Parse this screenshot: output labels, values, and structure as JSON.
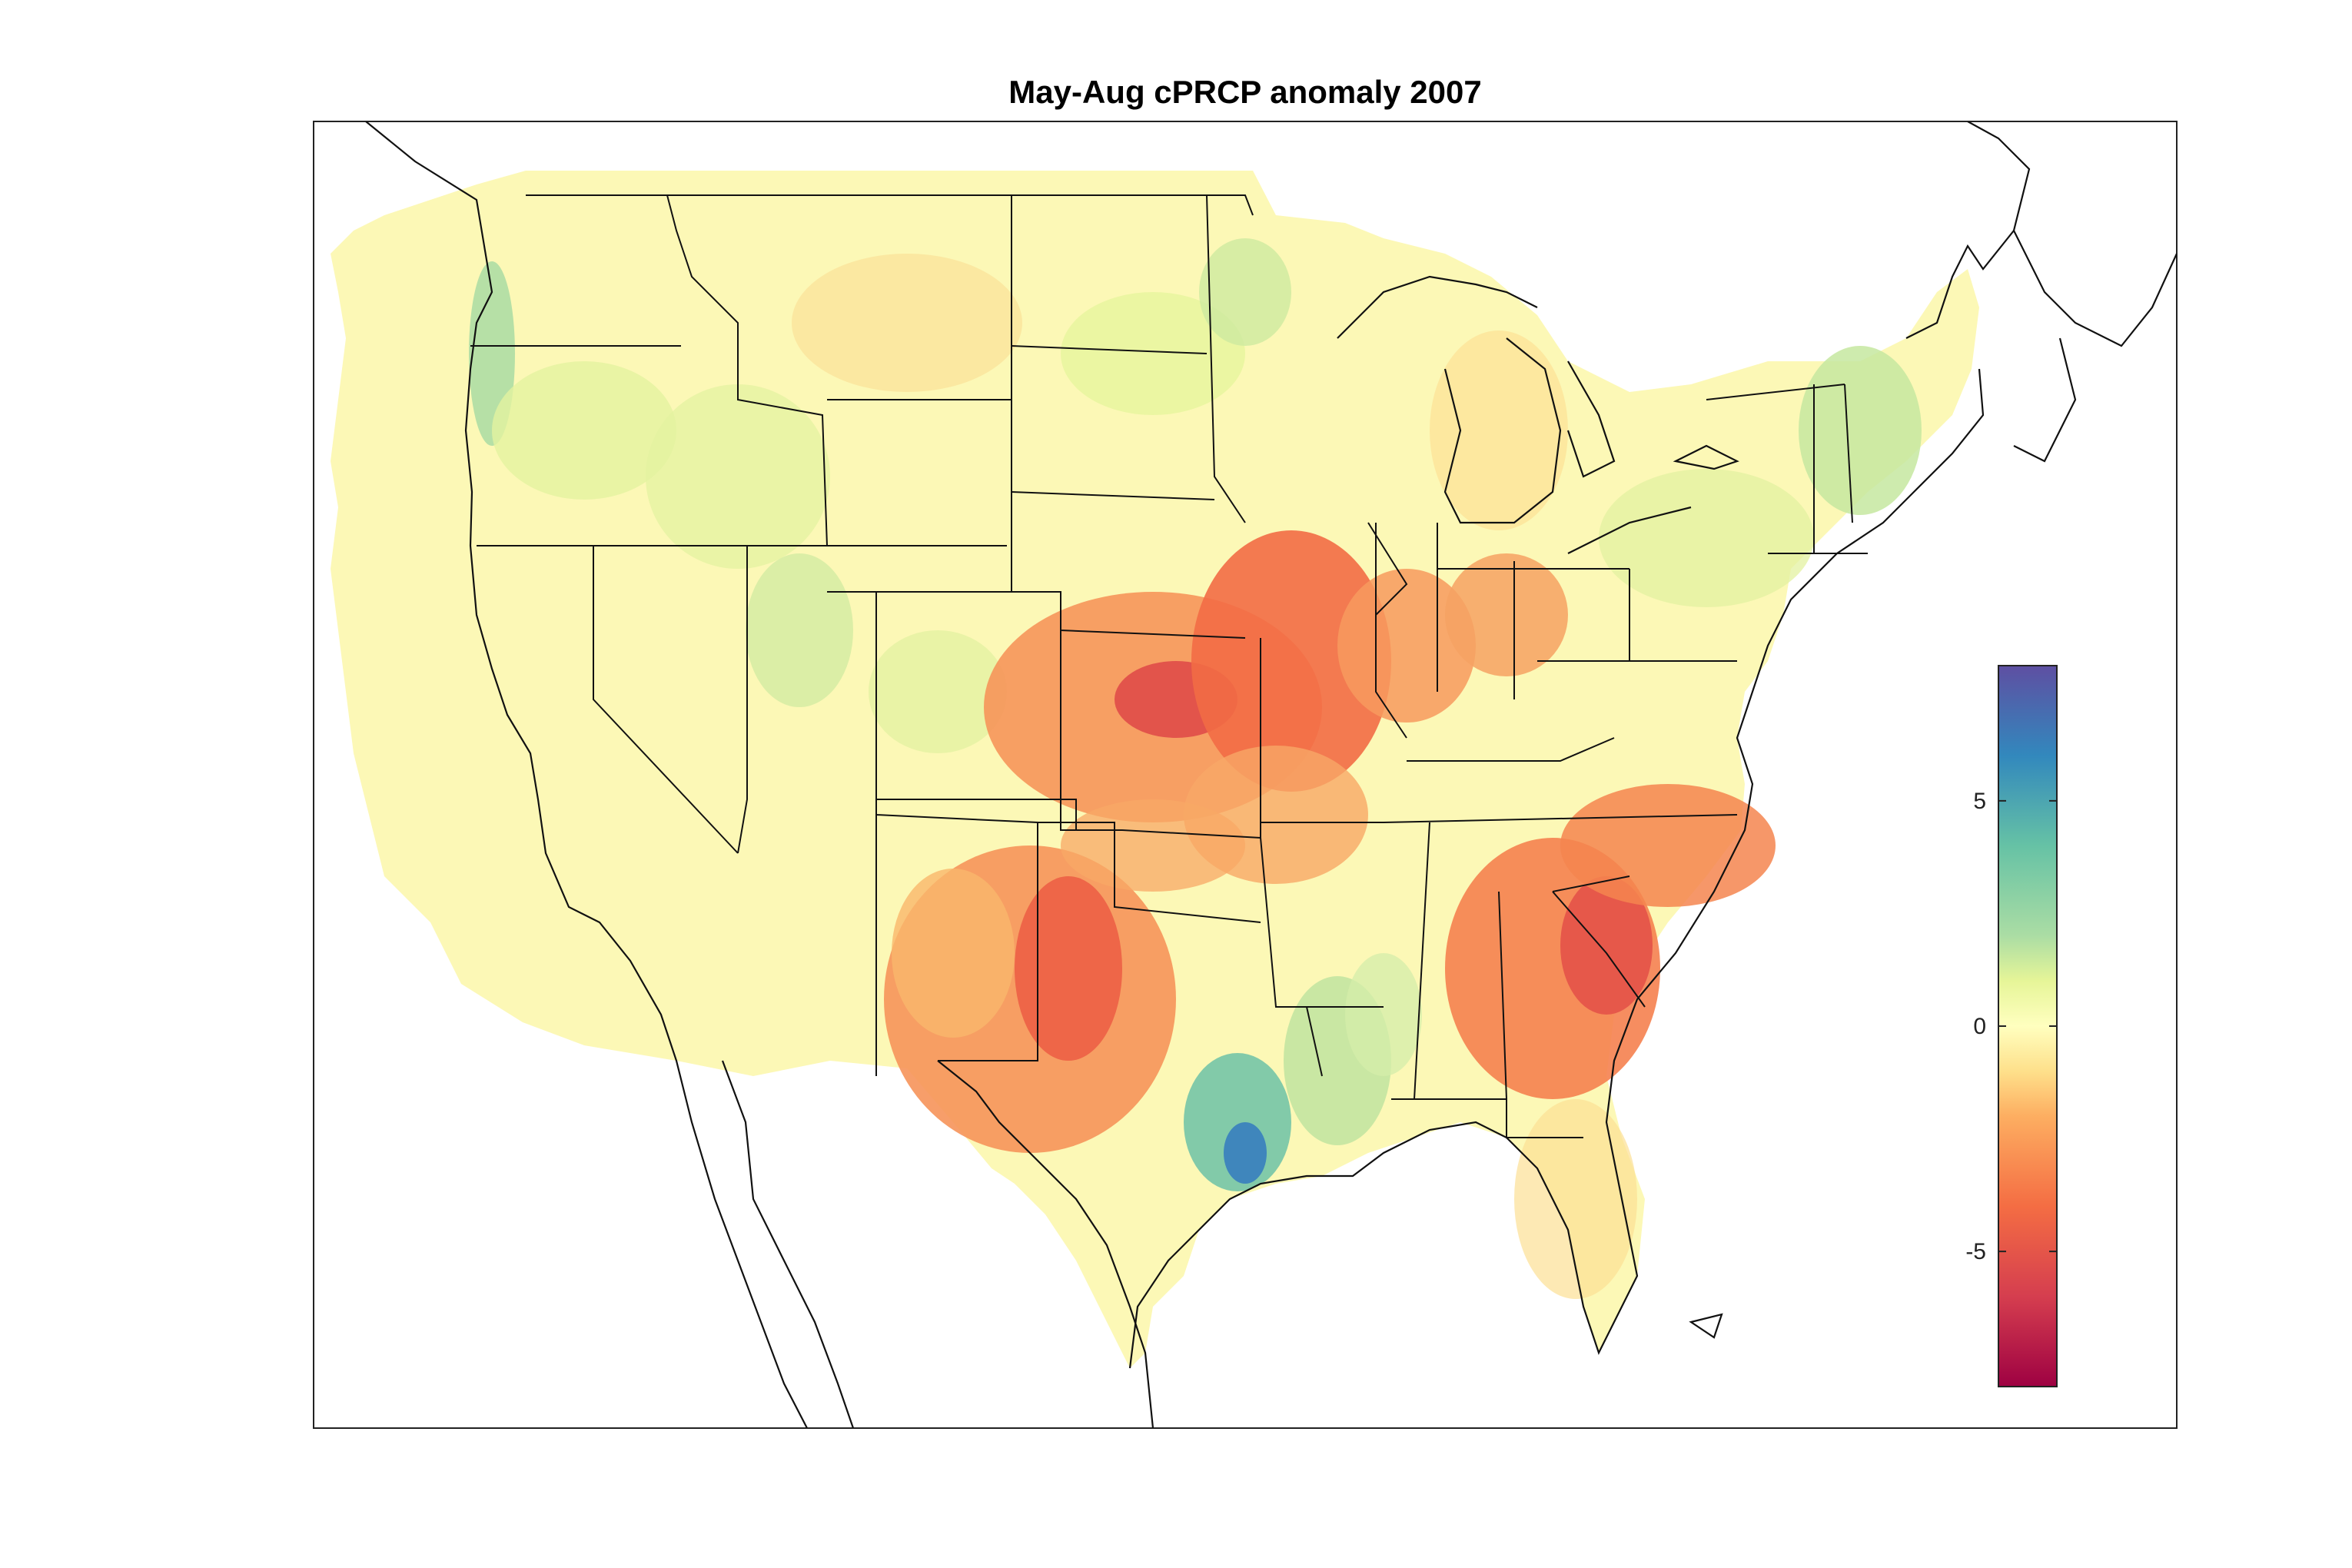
{
  "map": {
    "title": "May-Aug cPRCP anomaly 2007",
    "variable": "cPRCP anomaly",
    "period": "May-Aug",
    "year": "2007",
    "region": "Contiguous United States",
    "features": [
      "state-boundaries",
      "coastlines",
      "gridded-anomaly-field"
    ]
  },
  "colorbar": {
    "colormap": "spectral",
    "range": [
      -8,
      8
    ],
    "ticks": [
      {
        "value": 5,
        "label": "5"
      },
      {
        "value": 0,
        "label": "0"
      },
      {
        "value": -5,
        "label": "-5"
      }
    ],
    "color_stops": [
      {
        "value": -8,
        "color": "#9e0142"
      },
      {
        "value": -6,
        "color": "#d53e4f"
      },
      {
        "value": -4,
        "color": "#f46d43"
      },
      {
        "value": -2,
        "color": "#fdae61"
      },
      {
        "value": -1,
        "color": "#fee08b"
      },
      {
        "value": 0,
        "color": "#ffffbf"
      },
      {
        "value": 1,
        "color": "#e6f598"
      },
      {
        "value": 2,
        "color": "#abdda4"
      },
      {
        "value": 4,
        "color": "#66c2a5"
      },
      {
        "value": 6,
        "color": "#3288bd"
      },
      {
        "value": 8,
        "color": "#5e4fa2"
      }
    ]
  },
  "anomaly_regions": [
    {
      "name": "Central Plains / Kansas-Missouri",
      "value": -5.2
    },
    {
      "name": "Illinois-Indiana-Ohio",
      "value": -3.2
    },
    {
      "name": "Central Texas / Oklahoma",
      "value": -4.5
    },
    {
      "name": "Georgia / South Carolina",
      "value": -5.0
    },
    {
      "name": "North Carolina / Virginia",
      "value": -3.8
    },
    {
      "name": "Southeast Texas coast",
      "value": 6.2
    },
    {
      "name": "Louisiana",
      "value": 2.5
    },
    {
      "name": "Pacific Northwest coast",
      "value": 2.8
    },
    {
      "name": "New England / Maine",
      "value": 1.8
    },
    {
      "name": "Northern Plains / Dakotas",
      "value": -1.2
    },
    {
      "name": "Great Basin / West",
      "value": 0.2
    }
  ]
}
